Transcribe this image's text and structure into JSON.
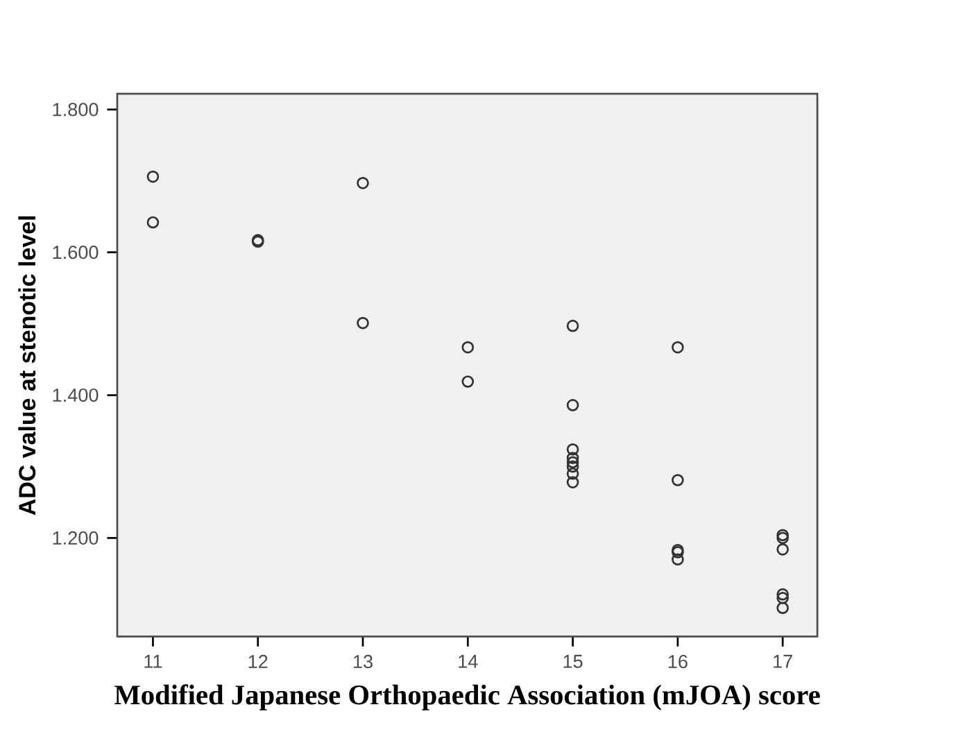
{
  "chart_data": {
    "type": "scatter",
    "xlabel": "Modified Japanese Orthopaedic Association (mJOA) score",
    "ylabel": "ADC value at stenotic level",
    "marker": "circle",
    "color": "#333333",
    "x": [
      11,
      11,
      12,
      12,
      13,
      13,
      14,
      14,
      15,
      15,
      15,
      15,
      15,
      15,
      15,
      15,
      16,
      16,
      16,
      16,
      16,
      17,
      17,
      17,
      17,
      17,
      17
    ],
    "values": [
      1.706,
      1.642,
      1.617,
      1.615,
      1.697,
      1.501,
      1.467,
      1.419,
      1.497,
      1.386,
      1.324,
      1.312,
      1.306,
      1.3,
      1.29,
      1.278,
      1.467,
      1.281,
      1.183,
      1.18,
      1.17,
      1.204,
      1.2,
      1.184,
      1.121,
      1.116,
      1.102
    ],
    "xlim": [
      10.66,
      17.33
    ],
    "ylim": [
      1.062,
      1.822
    ],
    "xticks": [
      11,
      12,
      13,
      14,
      15,
      16,
      17
    ],
    "yticks": [
      {
        "value": 1.2,
        "label": "1.200"
      },
      {
        "value": 1.4,
        "label": "1.400"
      },
      {
        "value": 1.6,
        "label": "1.600"
      },
      {
        "value": 1.8,
        "label": "1.800"
      }
    ]
  }
}
